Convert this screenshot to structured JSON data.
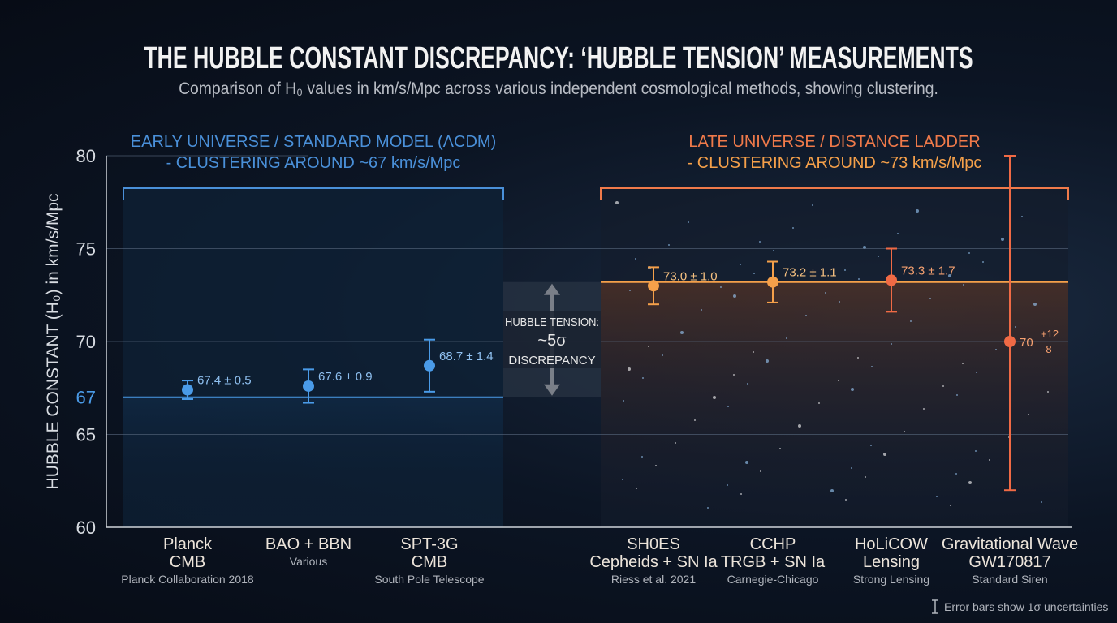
{
  "chart_data": {
    "type": "scatter",
    "title": "THE HUBBLE CONSTANT DISCREPANCY: ‘HUBBLE TENSION’ MEASUREMENTS",
    "subtitle": "Comparison of H₀ values in km/s/Mpc across various independent cosmological methods, showing clustering.",
    "ylabel": "HUBBLE CONSTANT (H₀) in km/s/Mpc",
    "ylim": [
      60,
      80
    ],
    "yticks": [
      "60",
      "65",
      "67",
      "70",
      "75",
      "80"
    ],
    "grid": true,
    "groups": [
      {
        "label_line1": "EARLY UNIVERSE / STANDARD MODEL (ΛCDM)",
        "label_line2": "- CLUSTERING AROUND ~67 km/s/Mpc",
        "color": "#4a90d9",
        "reference": 67
      },
      {
        "label_line1": "LATE UNIVERSE / DISTANCE LADDER",
        "label_line2": "- CLUSTERING AROUND ~73 km/s/Mpc",
        "color": "#f07a4a",
        "reference": 73.2
      }
    ],
    "points": [
      {
        "name": "Planck",
        "name2": "CMB",
        "source": "Planck Collaboration 2018",
        "value": 67.4,
        "err_plus": 0.5,
        "err_minus": 0.5,
        "label": "67.4 ± 0.5",
        "color": "#4a9be8"
      },
      {
        "name": "BAO + BBN",
        "name2": "",
        "source": "Various",
        "value": 67.6,
        "err_plus": 0.9,
        "err_minus": 0.9,
        "label": "67.6 ± 0.9",
        "color": "#4a9be8"
      },
      {
        "name": "SPT-3G",
        "name2": "CMB",
        "source": "South Pole Telescope",
        "value": 68.7,
        "err_plus": 1.4,
        "err_minus": 1.4,
        "label": "68.7 ± 1.4",
        "color": "#4a9be8"
      },
      {
        "name": "SH0ES",
        "name2": "Cepheids + SN Ia",
        "source": "Riess et al. 2021",
        "value": 73.0,
        "err_plus": 1.0,
        "err_minus": 1.0,
        "label": "73.0 ± 1.0",
        "color": "#f5a04a"
      },
      {
        "name": "CCHP",
        "name2": "TRGB + SN Ia",
        "source": "Carnegie-Chicago",
        "value": 73.2,
        "err_plus": 1.1,
        "err_minus": 1.1,
        "label": "73.2 ± 1.1",
        "color": "#f5a04a"
      },
      {
        "name": "HoLiCOW",
        "name2": "Lensing",
        "source": "Strong Lensing",
        "value": 73.3,
        "err_plus": 1.7,
        "err_minus": 1.7,
        "label": "73.3 ± 1.7",
        "color": "#f06a45"
      },
      {
        "name": "Gravitational Wave",
        "name2": "GW170817",
        "source": "Standard Siren",
        "value": 70,
        "err_plus": 12,
        "err_minus": 8,
        "label": "70",
        "label_sup": "+12",
        "label_sub": "-8",
        "color": "#f06a45"
      }
    ],
    "tension": {
      "line1": "HUBBLE TENSION:",
      "line2": "~5σ",
      "line3": "DISCREPANCY"
    },
    "footnote": "Error bars show 1σ uncertainties"
  }
}
